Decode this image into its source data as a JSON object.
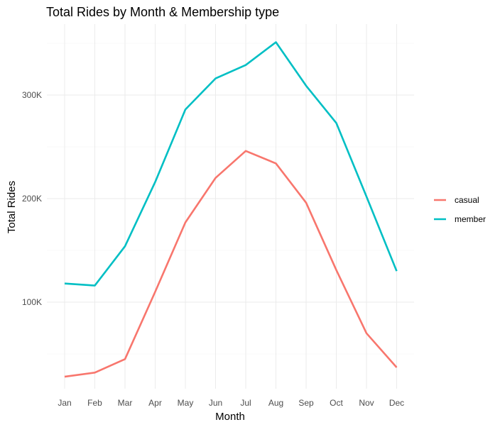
{
  "chart_data": {
    "type": "line",
    "title": "Total Rides by Month & Membership type",
    "xlabel": "Month",
    "ylabel": "Total Rides",
    "categories": [
      "Jan",
      "Feb",
      "Mar",
      "Apr",
      "May",
      "Jun",
      "Jul",
      "Aug",
      "Sep",
      "Oct",
      "Nov",
      "Dec"
    ],
    "y_ticks": [
      100000,
      200000,
      300000
    ],
    "y_tick_labels": [
      "100K",
      "200K",
      "300K"
    ],
    "ylim": [
      18000,
      355000
    ],
    "grid": true,
    "legend_position": "right",
    "series": [
      {
        "name": "casual",
        "color": "#F8766D",
        "values": [
          28000,
          32000,
          45000,
          110000,
          177000,
          220000,
          246000,
          234000,
          196000,
          131000,
          70000,
          37000
        ]
      },
      {
        "name": "member",
        "color": "#00BFC4",
        "values": [
          118000,
          116000,
          154000,
          216000,
          286000,
          316000,
          329000,
          351000,
          309000,
          273000,
          202000,
          130000
        ]
      }
    ]
  }
}
